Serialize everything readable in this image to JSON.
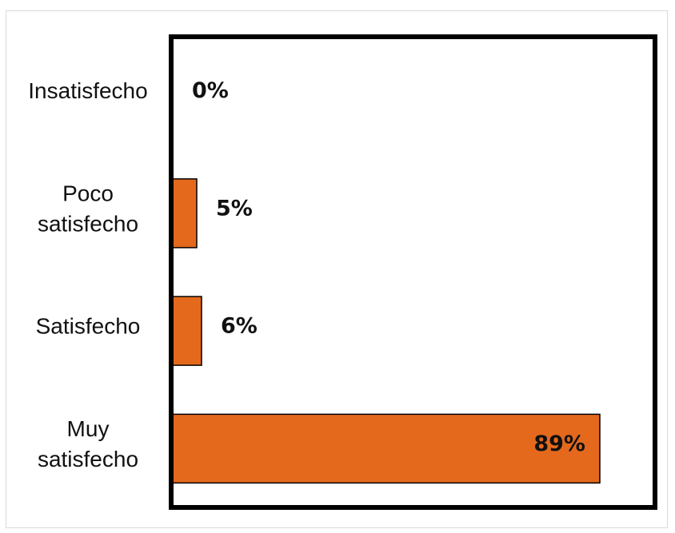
{
  "chart_data": {
    "type": "bar",
    "orientation": "horizontal",
    "categories": [
      [
        "Insatisfecho"
      ],
      [
        "Poco",
        "satisfecho"
      ],
      [
        "Satisfecho"
      ],
      [
        "Muy",
        "satisfecho"
      ]
    ],
    "values": [
      0,
      5,
      6,
      89
    ],
    "value_labels": [
      "0%",
      "5%",
      "6%",
      "89%"
    ],
    "xlim": [
      0,
      100
    ],
    "grid": false,
    "title": "",
    "xlabel": "",
    "ylabel": ""
  },
  "colors": {
    "bar": "#E5691C",
    "border": "#000000",
    "frame": "#d9d9d9"
  }
}
